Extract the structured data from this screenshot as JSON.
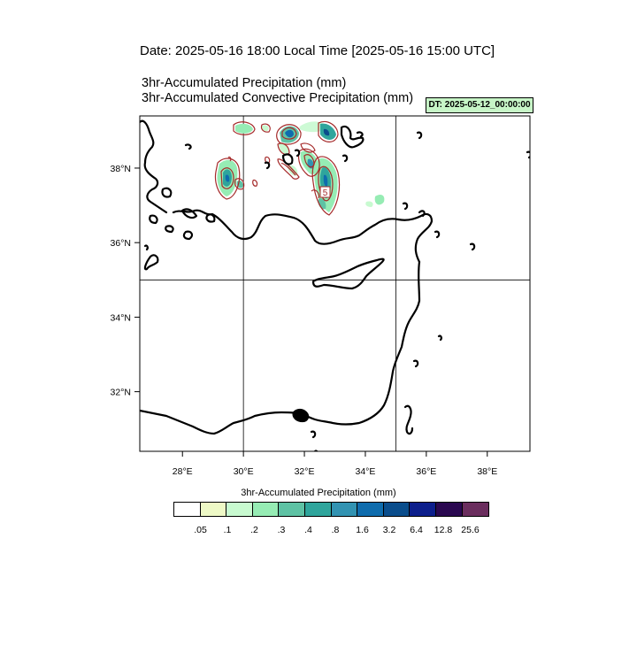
{
  "header": {
    "title": "Date: 2025-05-16  18:00 Local Time [2025-05-16  15:00 UTC]",
    "subtitle_1": "3hr-Accumulated Precipitation   (mm)",
    "subtitle_2": "3hr-Accumulated Convective Precipitation   (mm)",
    "dt_label": "DT: 2025-05-12_00:00:00"
  },
  "map": {
    "region": "Eastern Mediterranean",
    "lon_range": [
      26.6,
      39.4
    ],
    "lat_range": [
      30.4,
      39.4
    ],
    "lon_ticks": [
      {
        "value": 28,
        "label": "28°E"
      },
      {
        "value": 30,
        "label": "30°E"
      },
      {
        "value": 32,
        "label": "32°E"
      },
      {
        "value": 34,
        "label": "34°E"
      },
      {
        "value": 36,
        "label": "36°E"
      },
      {
        "value": 38,
        "label": "38°E"
      }
    ],
    "lat_ticks": [
      {
        "value": 32,
        "label": "32°N"
      },
      {
        "value": 34,
        "label": "34°N"
      },
      {
        "value": 36,
        "label": "36°N"
      },
      {
        "value": 38,
        "label": "38°N"
      }
    ],
    "gridlines": {
      "lon": [
        30,
        35
      ],
      "lat": [
        35
      ]
    },
    "contour_label": "5",
    "coast_color": "#000000",
    "contour_color": "#a52a2a"
  },
  "legend": {
    "title": "3hr-Accumulated Precipitation  (mm)",
    "colors": [
      "#ffffff",
      "#eef9c6",
      "#c8fad0",
      "#96ecb4",
      "#5ec2a4",
      "#2fa59c",
      "#3293b2",
      "#0f6cad",
      "#0a4d8c",
      "#0d1f8c",
      "#2a0850",
      "#6b2e5e"
    ],
    "labels": [
      ".05",
      ".1",
      ".2",
      ".3",
      ".4",
      ".8",
      "1.6",
      "3.2",
      "6.4",
      "12.8",
      "25.6"
    ]
  }
}
